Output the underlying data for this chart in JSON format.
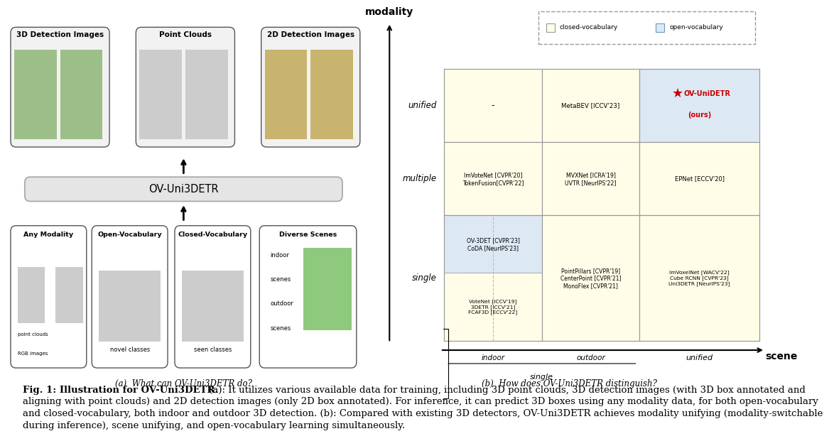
{
  "subfig_a_caption": "(a)  What can OV-Uni3DETR do?",
  "subfig_b_caption": "(b)  How does OV-Uni3DETR distinguish?",
  "fig_caption_bold": "Fig. 1: Illustration for OV-Uni3DETR.",
  "fig_caption_rest": " (a): It utilizes various available data for training, including 3D point clouds, 3D detection images (with 3D box annotated and aligning with point clouds) and 2D detection images (only 2D box annotated). For inference, it can predict 3D boxes using any modality data, for both open-vocabulary and closed-vocabulary, both indoor and outdoor 3D detection. (b): Compared with existing 3D detectors, OV-Uni3DETR achieves modality unifying (modality-switchable during inference), scene unifying, and open-vocabulary learning simultaneously.",
  "grid_bg_cream": "#fffde7",
  "grid_bg_blue": "#dce9f5",
  "ours_star_color": "#cc0000",
  "bg_color": "#ffffff",
  "box_ec": "#555555",
  "grid_ec": "#999999"
}
